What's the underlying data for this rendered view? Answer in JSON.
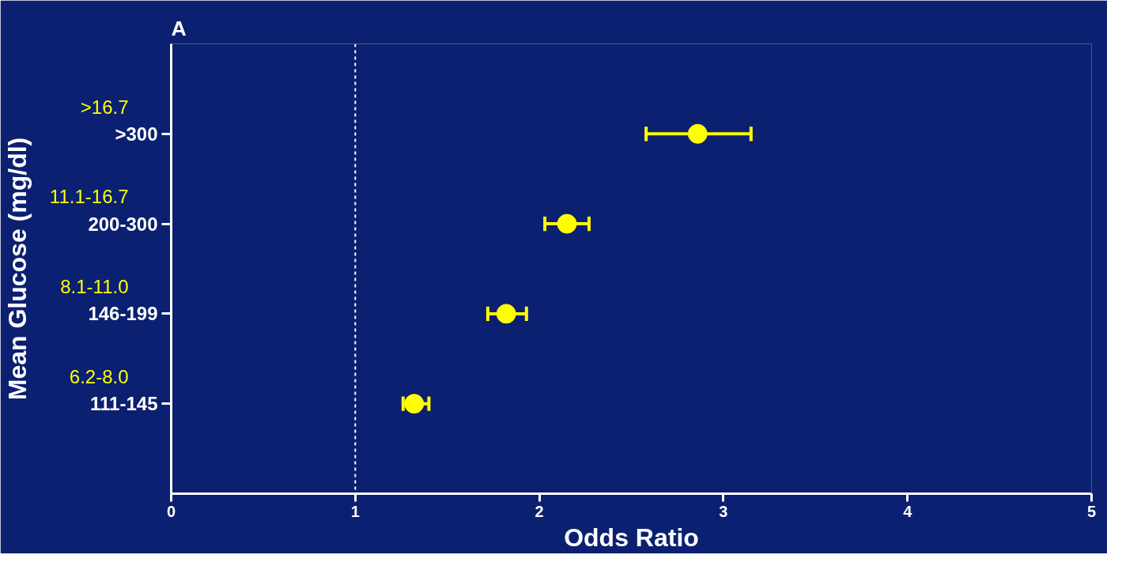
{
  "chart_data": {
    "type": "scatter",
    "title": "A",
    "xlabel": "Odds Ratio",
    "ylabel": "Mean Glucose (mg/dl)",
    "orientation": "horizontal",
    "categories": [
      ">300",
      "200-300",
      "146-199",
      "111-145"
    ],
    "color": "#ffff00",
    "values": [
      2.86,
      2.15,
      1.82,
      1.32
    ],
    "errors": [
      [
        2.58,
        3.15
      ],
      [
        2.03,
        2.27
      ],
      [
        1.72,
        1.93
      ],
      [
        1.26,
        1.4
      ]
    ],
    "annotations": [
      ">16.7",
      "11.1-16.7",
      "8.1-11.0",
      "6.2-8.0"
    ],
    "xlim": [
      0,
      5
    ],
    "xticks": [
      0,
      1,
      2,
      3,
      4,
      5
    ],
    "ref_lines": [
      {
        "axis": "x",
        "value": 1,
        "color": "#ffffff",
        "line_style": "dashed"
      }
    ],
    "marker": "circle",
    "grid": false,
    "legend": false
  }
}
